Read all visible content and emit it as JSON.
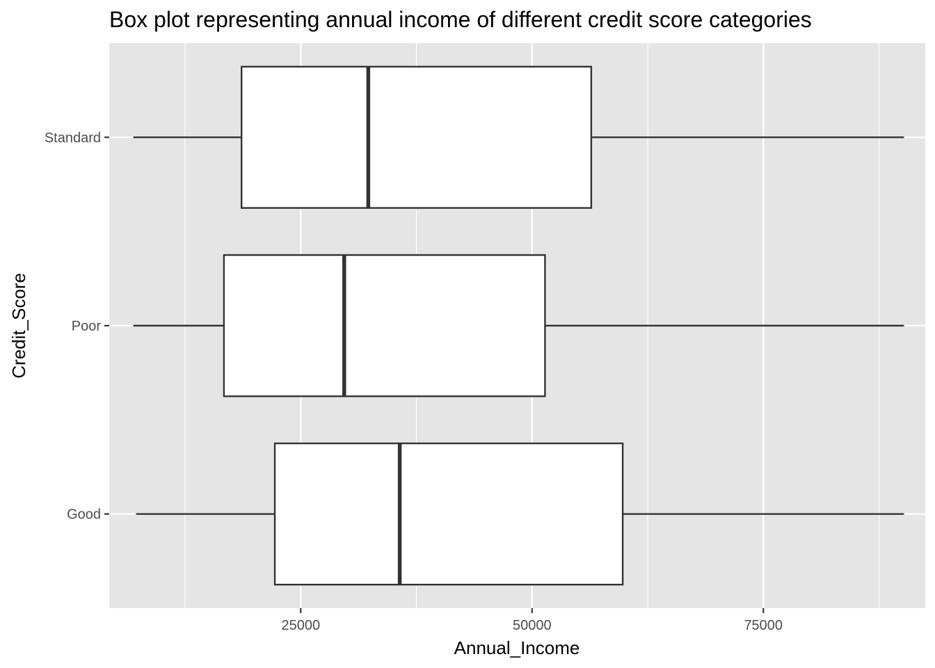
{
  "chart_data": {
    "type": "boxplot",
    "orientation": "horizontal",
    "title": "Box plot representing annual income of different credit score categories",
    "xlabel": "Annual_Income",
    "ylabel": "Credit_Score",
    "xlim": [
      4300,
      92500
    ],
    "x_ticks": [
      25000,
      50000,
      75000
    ],
    "x_tick_labels": [
      "25000",
      "50000",
      "75000"
    ],
    "categories": [
      "Good",
      "Poor",
      "Standard"
    ],
    "boxes": [
      {
        "category": "Good",
        "whisker_low": 7200,
        "q1": 22200,
        "median": 35700,
        "q3": 59800,
        "whisker_high": 90200
      },
      {
        "category": "Poor",
        "whisker_low": 6900,
        "q1": 16700,
        "median": 29700,
        "q3": 51400,
        "whisker_high": 90200
      },
      {
        "category": "Standard",
        "whisker_low": 6900,
        "q1": 18600,
        "median": 32300,
        "q3": 56400,
        "whisker_high": 90200
      }
    ],
    "grid": true,
    "colors": {
      "panel_background": "#e5e5e5",
      "grid_line": "#ffffff",
      "box_fill": "#ffffff",
      "box_stroke": "#333333"
    }
  }
}
